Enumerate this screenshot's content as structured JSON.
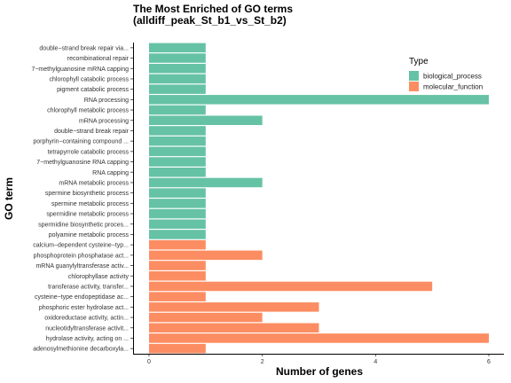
{
  "chart_data": {
    "type": "bar",
    "orientation": "horizontal",
    "title_line1": "The Most Enriched of GO terms",
    "title_line2": "(alldiff_peak_St_b1_vs_St_b2)",
    "xlabel": "Number of genes",
    "ylabel": "GO term",
    "xlim": [
      0,
      6.2
    ],
    "xticks": [
      "0",
      "2",
      "4",
      "6"
    ],
    "grid": false,
    "legend": {
      "title": "Type",
      "position": "top-right",
      "entries": [
        {
          "label": "biological_process",
          "color": "#66C2A5"
        },
        {
          "label": "molecular_function",
          "color": "#FC8D62"
        }
      ]
    },
    "bars": [
      {
        "term": "double−strand break repair via...",
        "value": 1,
        "type": "biological_process"
      },
      {
        "term": "recombinational repair",
        "value": 1,
        "type": "biological_process"
      },
      {
        "term": "7−methylguanosine mRNA capping",
        "value": 1,
        "type": "biological_process"
      },
      {
        "term": "chlorophyll catabolic process",
        "value": 1,
        "type": "biological_process"
      },
      {
        "term": "pigment catabolic process",
        "value": 1,
        "type": "biological_process"
      },
      {
        "term": "RNA processing",
        "value": 6,
        "type": "biological_process"
      },
      {
        "term": "chlorophyll metabolic process",
        "value": 1,
        "type": "biological_process"
      },
      {
        "term": "mRNA processing",
        "value": 2,
        "type": "biological_process"
      },
      {
        "term": "double−strand break repair",
        "value": 1,
        "type": "biological_process"
      },
      {
        "term": "porphyrin−containing compound ...",
        "value": 1,
        "type": "biological_process"
      },
      {
        "term": "tetrapyrrole catabolic process",
        "value": 1,
        "type": "biological_process"
      },
      {
        "term": "7−methylguanosine RNA capping",
        "value": 1,
        "type": "biological_process"
      },
      {
        "term": "RNA capping",
        "value": 1,
        "type": "biological_process"
      },
      {
        "term": "mRNA metabolic process",
        "value": 2,
        "type": "biological_process"
      },
      {
        "term": "spermine biosynthetic process",
        "value": 1,
        "type": "biological_process"
      },
      {
        "term": "spermine metabolic process",
        "value": 1,
        "type": "biological_process"
      },
      {
        "term": "spermidine metabolic process",
        "value": 1,
        "type": "biological_process"
      },
      {
        "term": "spermidine biosynthetic proces...",
        "value": 1,
        "type": "biological_process"
      },
      {
        "term": "polyamine metabolic process",
        "value": 1,
        "type": "biological_process"
      },
      {
        "term": "calcium−dependent cysteine−typ...",
        "value": 1,
        "type": "molecular_function"
      },
      {
        "term": "phosphoprotein phosphatase act...",
        "value": 2,
        "type": "molecular_function"
      },
      {
        "term": "mRNA guanylyltransferase activ...",
        "value": 1,
        "type": "molecular_function"
      },
      {
        "term": "chlorophyllase activity",
        "value": 1,
        "type": "molecular_function"
      },
      {
        "term": "transferase activity, transfer...",
        "value": 5,
        "type": "molecular_function"
      },
      {
        "term": "cysteine−type endopeptidase ac...",
        "value": 1,
        "type": "molecular_function"
      },
      {
        "term": "phosphoric ester hydrolase act...",
        "value": 3,
        "type": "molecular_function"
      },
      {
        "term": "oxidoreductase activity, actin...",
        "value": 2,
        "type": "molecular_function"
      },
      {
        "term": "nucleotidyltransferase activit...",
        "value": 3,
        "type": "molecular_function"
      },
      {
        "term": "hydrolase activity, acting on ...",
        "value": 6,
        "type": "molecular_function"
      },
      {
        "term": "adenosylmethionine decarboxyla...",
        "value": 1,
        "type": "molecular_function"
      }
    ]
  }
}
